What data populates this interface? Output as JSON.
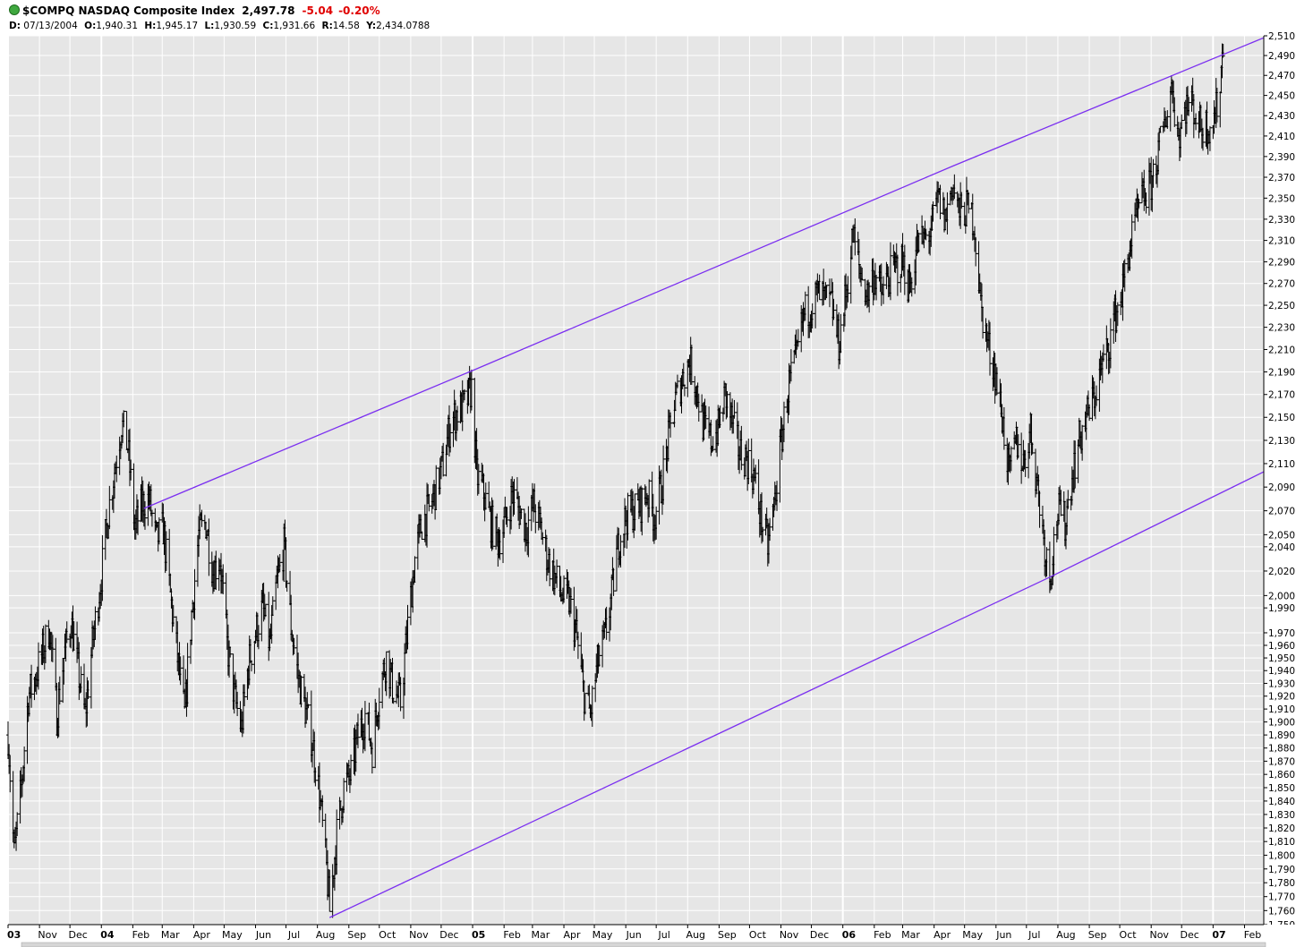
{
  "header": {
    "symbol_line": "$COMPQ NASDAQ Composite Index",
    "last": "2,497.78",
    "change": "-5.04",
    "change_pct": "-0.20%",
    "d_label": "D:",
    "d_value": "07/13/2004",
    "o_label": "O:",
    "o_value": "1,940.31",
    "h_label": "H:",
    "h_value": "1,945.17",
    "l_label": "L:",
    "l_value": "1,930.59",
    "c_label": "C:",
    "c_value": "1,931.66",
    "r_label": "R:",
    "r_value": "14.58",
    "y_label": "Y:",
    "y_value": "2,434.0788"
  },
  "colors": {
    "plot_bg": "#e6e6e6",
    "price_bars": "#000000",
    "trendlines": "#7b2ff0",
    "grid": "#ffffff",
    "negative": "#e00000",
    "status_icon": "#3fa83f"
  },
  "chart_data": {
    "type": "line",
    "style": "ohlc-bars",
    "grid": true,
    "y_scale": "log",
    "ylim": [
      1750,
      2510
    ],
    "xlim": [
      "2003-10-01",
      "2007-02-20"
    ],
    "x_tick_labels": [
      {
        "date": "2003-10-01",
        "label": "03",
        "major": true
      },
      {
        "date": "2003-11-01",
        "label": "Nov"
      },
      {
        "date": "2003-12-01",
        "label": "Dec"
      },
      {
        "date": "2004-01-01",
        "label": "04",
        "major": true
      },
      {
        "date": "2004-02-01",
        "label": "Feb"
      },
      {
        "date": "2004-03-01",
        "label": "Mar"
      },
      {
        "date": "2004-04-01",
        "label": "Apr"
      },
      {
        "date": "2004-05-01",
        "label": "May"
      },
      {
        "date": "2004-06-01",
        "label": "Jun"
      },
      {
        "date": "2004-07-01",
        "label": "Jul"
      },
      {
        "date": "2004-08-01",
        "label": "Aug"
      },
      {
        "date": "2004-09-01",
        "label": "Sep"
      },
      {
        "date": "2004-10-01",
        "label": "Oct"
      },
      {
        "date": "2004-11-01",
        "label": "Nov"
      },
      {
        "date": "2004-12-01",
        "label": "Dec"
      },
      {
        "date": "2005-01-01",
        "label": "05",
        "major": true
      },
      {
        "date": "2005-02-01",
        "label": "Feb"
      },
      {
        "date": "2005-03-01",
        "label": "Mar"
      },
      {
        "date": "2005-04-01",
        "label": "Apr"
      },
      {
        "date": "2005-05-01",
        "label": "May"
      },
      {
        "date": "2005-06-01",
        "label": "Jun"
      },
      {
        "date": "2005-07-01",
        "label": "Jul"
      },
      {
        "date": "2005-08-01",
        "label": "Aug"
      },
      {
        "date": "2005-09-01",
        "label": "Sep"
      },
      {
        "date": "2005-10-01",
        "label": "Oct"
      },
      {
        "date": "2005-11-01",
        "label": "Nov"
      },
      {
        "date": "2005-12-01",
        "label": "Dec"
      },
      {
        "date": "2006-01-01",
        "label": "06",
        "major": true
      },
      {
        "date": "2006-02-01",
        "label": "Feb"
      },
      {
        "date": "2006-03-01",
        "label": "Mar"
      },
      {
        "date": "2006-04-01",
        "label": "Apr"
      },
      {
        "date": "2006-05-01",
        "label": "May"
      },
      {
        "date": "2006-06-01",
        "label": "Jun"
      },
      {
        "date": "2006-07-01",
        "label": "Jul"
      },
      {
        "date": "2006-08-01",
        "label": "Aug"
      },
      {
        "date": "2006-09-01",
        "label": "Sep"
      },
      {
        "date": "2006-10-01",
        "label": "Oct"
      },
      {
        "date": "2006-11-01",
        "label": "Nov"
      },
      {
        "date": "2006-12-01",
        "label": "Dec"
      },
      {
        "date": "2007-01-01",
        "label": "07",
        "major": true
      },
      {
        "date": "2007-02-01",
        "label": "Feb"
      }
    ],
    "y_ticks": [
      {
        "v": 2510,
        "label": "2,510"
      },
      {
        "v": 2490,
        "label": "2,490"
      },
      {
        "v": 2470,
        "label": "2,470"
      },
      {
        "v": 2450,
        "label": "2,450"
      },
      {
        "v": 2430,
        "label": "2,430"
      },
      {
        "v": 2410,
        "label": "2,410"
      },
      {
        "v": 2390,
        "label": "2,390"
      },
      {
        "v": 2370,
        "label": "2,370"
      },
      {
        "v": 2350,
        "label": "2,350"
      },
      {
        "v": 2330,
        "label": "2,330"
      },
      {
        "v": 2310,
        "label": "2,310"
      },
      {
        "v": 2290,
        "label": "2,290"
      },
      {
        "v": 2270,
        "label": "2,270"
      },
      {
        "v": 2250,
        "label": "2,250"
      },
      {
        "v": 2230,
        "label": "2,230"
      },
      {
        "v": 2210,
        "label": "2,210"
      },
      {
        "v": 2190,
        "label": "2,190"
      },
      {
        "v": 2170,
        "label": "2,170"
      },
      {
        "v": 2150,
        "label": "2,150"
      },
      {
        "v": 2130,
        "label": "2,130"
      },
      {
        "v": 2110,
        "label": "2,110"
      },
      {
        "v": 2090,
        "label": "2,090"
      },
      {
        "v": 2070,
        "label": "2,070"
      },
      {
        "v": 2050,
        "label": "2,050"
      },
      {
        "v": 2040,
        "label": "2,040"
      },
      {
        "v": 2020,
        "label": "2,020"
      },
      {
        "v": 2000,
        "label": "2,000"
      },
      {
        "v": 1990,
        "label": "1,990"
      },
      {
        "v": 1970,
        "label": "1,970"
      },
      {
        "v": 1960,
        "label": "1,960"
      },
      {
        "v": 1950,
        "label": "1,950"
      },
      {
        "v": 1940,
        "label": "1,940"
      },
      {
        "v": 1930,
        "label": "1,930"
      },
      {
        "v": 1920,
        "label": "1,920"
      },
      {
        "v": 1910,
        "label": "1,910"
      },
      {
        "v": 1900,
        "label": "1,900"
      },
      {
        "v": 1890,
        "label": "1,890"
      },
      {
        "v": 1880,
        "label": "1,880"
      },
      {
        "v": 1870,
        "label": "1,870"
      },
      {
        "v": 1860,
        "label": "1,860"
      },
      {
        "v": 1850,
        "label": "1,850"
      },
      {
        "v": 1840,
        "label": "1,840"
      },
      {
        "v": 1830,
        "label": "1,830"
      },
      {
        "v": 1820,
        "label": "1,820"
      },
      {
        "v": 1810,
        "label": "1,810"
      },
      {
        "v": 1800,
        "label": "1,800"
      },
      {
        "v": 1790,
        "label": "1,790"
      },
      {
        "v": 1780,
        "label": "1,780"
      },
      {
        "v": 1770,
        "label": "1,770"
      },
      {
        "v": 1760,
        "label": "1,760"
      },
      {
        "v": 1750,
        "label": "1,750"
      }
    ],
    "price_path": [
      [
        "2003-10-01",
        1890
      ],
      [
        "2003-10-07",
        1800
      ],
      [
        "2003-10-14",
        1850
      ],
      [
        "2003-10-21",
        1920
      ],
      [
        "2003-10-28",
        1935
      ],
      [
        "2003-11-04",
        1955
      ],
      [
        "2003-11-11",
        1975
      ],
      [
        "2003-11-18",
        1905
      ],
      [
        "2003-11-25",
        1950
      ],
      [
        "2003-12-02",
        1980
      ],
      [
        "2003-12-09",
        1940
      ],
      [
        "2003-12-16",
        1905
      ],
      [
        "2003-12-23",
        1960
      ],
      [
        "2003-12-31",
        2010
      ],
      [
        "2004-01-08",
        2070
      ],
      [
        "2004-01-15",
        2110
      ],
      [
        "2004-01-21",
        2145
      ],
      [
        "2004-01-27",
        2125
      ],
      [
        "2004-02-03",
        2055
      ],
      [
        "2004-02-10",
        2075
      ],
      [
        "2004-02-17",
        2080
      ],
      [
        "2004-02-24",
        2045
      ],
      [
        "2004-03-02",
        2055
      ],
      [
        "2004-03-09",
        2000
      ],
      [
        "2004-03-16",
        1950
      ],
      [
        "2004-03-23",
        1905
      ],
      [
        "2004-03-30",
        1985
      ],
      [
        "2004-04-06",
        2050
      ],
      [
        "2004-04-13",
        2060
      ],
      [
        "2004-04-20",
        2020
      ],
      [
        "2004-04-27",
        2030
      ],
      [
        "2004-05-04",
        1960
      ],
      [
        "2004-05-11",
        1920
      ],
      [
        "2004-05-18",
        1895
      ],
      [
        "2004-05-25",
        1945
      ],
      [
        "2004-06-01",
        1970
      ],
      [
        "2004-06-08",
        1990
      ],
      [
        "2004-06-15",
        1960
      ],
      [
        "2004-06-22",
        2010
      ],
      [
        "2004-06-29",
        2040
      ],
      [
        "2004-07-06",
        1975
      ],
      [
        "2004-07-13",
        1935
      ],
      [
        "2004-07-20",
        1910
      ],
      [
        "2004-07-27",
        1885
      ],
      [
        "2004-08-03",
        1845
      ],
      [
        "2004-08-06",
        1820
      ],
      [
        "2004-08-10",
        1790
      ],
      [
        "2004-08-13",
        1760
      ],
      [
        "2004-08-20",
        1815
      ],
      [
        "2004-08-27",
        1850
      ],
      [
        "2004-09-03",
        1860
      ],
      [
        "2004-09-10",
        1890
      ],
      [
        "2004-09-17",
        1905
      ],
      [
        "2004-09-24",
        1880
      ],
      [
        "2004-10-01",
        1925
      ],
      [
        "2004-10-08",
        1950
      ],
      [
        "2004-10-15",
        1925
      ],
      [
        "2004-10-22",
        1915
      ],
      [
        "2004-10-29",
        1975
      ],
      [
        "2004-11-05",
        2030
      ],
      [
        "2004-11-12",
        2060
      ],
      [
        "2004-11-19",
        2070
      ],
      [
        "2004-11-26",
        2090
      ],
      [
        "2004-12-03",
        2110
      ],
      [
        "2004-12-10",
        2145
      ],
      [
        "2004-12-17",
        2155
      ],
      [
        "2004-12-24",
        2160
      ],
      [
        "2004-12-31",
        2175
      ],
      [
        "2005-01-05",
        2100
      ],
      [
        "2005-01-12",
        2085
      ],
      [
        "2005-01-19",
        2060
      ],
      [
        "2005-01-26",
        2045
      ],
      [
        "2005-02-02",
        2060
      ],
      [
        "2005-02-09",
        2085
      ],
      [
        "2005-02-16",
        2070
      ],
      [
        "2005-02-23",
        2055
      ],
      [
        "2005-03-02",
        2075
      ],
      [
        "2005-03-09",
        2055
      ],
      [
        "2005-03-16",
        2030
      ],
      [
        "2005-03-23",
        2015
      ],
      [
        "2005-03-30",
        2000
      ],
      [
        "2005-04-06",
        1995
      ],
      [
        "2005-04-13",
        1970
      ],
      [
        "2005-04-20",
        1925
      ],
      [
        "2005-04-27",
        1905
      ],
      [
        "2005-05-04",
        1945
      ],
      [
        "2005-05-11",
        1965
      ],
      [
        "2005-05-18",
        2000
      ],
      [
        "2005-05-25",
        2045
      ],
      [
        "2005-06-01",
        2065
      ],
      [
        "2005-06-08",
        2070
      ],
      [
        "2005-06-15",
        2075
      ],
      [
        "2005-06-22",
        2085
      ],
      [
        "2005-06-29",
        2065
      ],
      [
        "2005-07-06",
        2090
      ],
      [
        "2005-07-13",
        2130
      ],
      [
        "2005-07-20",
        2165
      ],
      [
        "2005-07-27",
        2185
      ],
      [
        "2005-08-03",
        2200
      ],
      [
        "2005-08-10",
        2175
      ],
      [
        "2005-08-17",
        2140
      ],
      [
        "2005-08-24",
        2130
      ],
      [
        "2005-08-31",
        2140
      ],
      [
        "2005-09-07",
        2170
      ],
      [
        "2005-09-14",
        2145
      ],
      [
        "2005-09-21",
        2120
      ],
      [
        "2005-09-28",
        2115
      ],
      [
        "2005-10-05",
        2100
      ],
      [
        "2005-10-12",
        2065
      ],
      [
        "2005-10-19",
        2040
      ],
      [
        "2005-10-26",
        2080
      ],
      [
        "2005-11-02",
        2135
      ],
      [
        "2005-11-09",
        2180
      ],
      [
        "2005-11-16",
        2200
      ],
      [
        "2005-11-23",
        2240
      ],
      [
        "2005-11-30",
        2250
      ],
      [
        "2005-12-07",
        2260
      ],
      [
        "2005-12-14",
        2255
      ],
      [
        "2005-12-21",
        2250
      ],
      [
        "2005-12-28",
        2215
      ],
      [
        "2006-01-04",
        2260
      ],
      [
        "2006-01-11",
        2315
      ],
      [
        "2006-01-18",
        2280
      ],
      [
        "2006-01-25",
        2260
      ],
      [
        "2006-02-01",
        2280
      ],
      [
        "2006-02-08",
        2260
      ],
      [
        "2006-02-15",
        2275
      ],
      [
        "2006-02-22",
        2285
      ],
      [
        "2006-03-01",
        2290
      ],
      [
        "2006-03-08",
        2265
      ],
      [
        "2006-03-15",
        2305
      ],
      [
        "2006-03-22",
        2310
      ],
      [
        "2006-03-29",
        2320
      ],
      [
        "2006-04-05",
        2350
      ],
      [
        "2006-04-12",
        2330
      ],
      [
        "2006-04-19",
        2365
      ],
      [
        "2006-04-26",
        2335
      ],
      [
        "2006-05-03",
        2340
      ],
      [
        "2006-05-10",
        2330
      ],
      [
        "2006-05-17",
        2250
      ],
      [
        "2006-05-24",
        2215
      ],
      [
        "2006-05-31",
        2190
      ],
      [
        "2006-06-07",
        2150
      ],
      [
        "2006-06-14",
        2100
      ],
      [
        "2006-06-21",
        2130
      ],
      [
        "2006-06-28",
        2110
      ],
      [
        "2006-07-05",
        2140
      ],
      [
        "2006-07-12",
        2090
      ],
      [
        "2006-07-19",
        2040
      ],
      [
        "2006-07-24",
        2015
      ],
      [
        "2006-08-01",
        2070
      ],
      [
        "2006-08-08",
        2060
      ],
      [
        "2006-08-15",
        2100
      ],
      [
        "2006-08-22",
        2130
      ],
      [
        "2006-08-29",
        2150
      ],
      [
        "2006-09-05",
        2165
      ],
      [
        "2006-09-12",
        2190
      ],
      [
        "2006-09-19",
        2210
      ],
      [
        "2006-09-26",
        2240
      ],
      [
        "2006-10-03",
        2260
      ],
      [
        "2006-10-10",
        2300
      ],
      [
        "2006-10-17",
        2330
      ],
      [
        "2006-10-24",
        2350
      ],
      [
        "2006-10-31",
        2360
      ],
      [
        "2006-11-07",
        2390
      ],
      [
        "2006-11-14",
        2420
      ],
      [
        "2006-11-21",
        2460
      ],
      [
        "2006-11-28",
        2410
      ],
      [
        "2006-12-05",
        2440
      ],
      [
        "2006-12-12",
        2440
      ],
      [
        "2006-12-19",
        2420
      ],
      [
        "2006-12-27",
        2420
      ],
      [
        "2007-01-03",
        2430
      ],
      [
        "2007-01-08",
        2460
      ],
      [
        "2007-01-11",
        2505
      ]
    ],
    "trendlines": [
      {
        "points": [
          [
            "2004-02-12",
            2072
          ],
          [
            "2005-01-03",
            2192
          ],
          [
            "2006-04-20",
            2381
          ],
          [
            "2007-02-20",
            2508
          ]
        ]
      },
      {
        "points": [
          [
            "2004-08-13",
            1755
          ],
          [
            "2006-07-24",
            2015
          ],
          [
            "2007-02-20",
            2103
          ]
        ]
      }
    ]
  }
}
